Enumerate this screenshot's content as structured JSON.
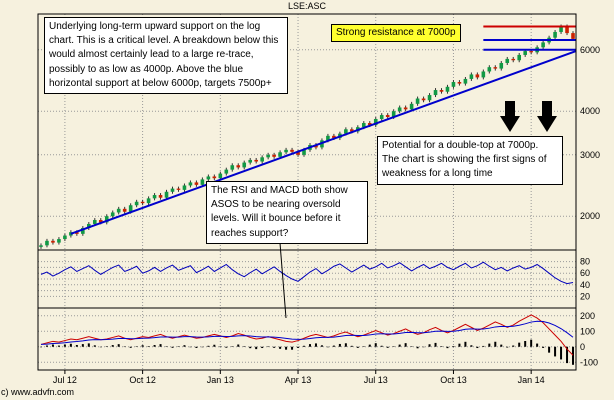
{
  "header": {
    "symbol": "LSE:ASC"
  },
  "footer": {
    "copyright": "c) www.advfn.com"
  },
  "annotations": {
    "support_note": "Underlying long-term upward support on the log chart. This is a critical level. A breakdown below this would almost certainly lead to a large re-trace, possibly to as low as 4000p. Above the blue horizontal support at below 6000p, targets 7500p+",
    "resistance_note": "Strong resistance at 7000p",
    "double_top_note": "Potential for a double-top at 7000p. The chart is showing the first signs of weakness for a long time",
    "rsi_note": "The RSI and MACD both show ASOS to be nearing oversold levels. Will it bounce before it reaches support?"
  },
  "colors": {
    "background": "#f6f1de",
    "grid": "#999999",
    "frame": "#000000",
    "candle_up": "#119944",
    "candle_down": "#cc2200",
    "wick": "#333333",
    "trend_line": "#0000cc",
    "resistance_line": "#cc0000",
    "rsi_line": "#0000bb",
    "macd_line": "#cc0000",
    "macd_signal": "#0000cc",
    "histogram": "#000000",
    "note_highlight": "#ffff2e"
  },
  "chart_data": [
    {
      "type": "candlestick",
      "title": "LSE:ASC weekly price (pence), log scale",
      "ylim": [
        1600,
        7600
      ],
      "log_scale": true,
      "grid": true,
      "yticks": [
        {
          "value": 6000,
          "label": "6000"
        },
        {
          "value": 4000,
          "label": "4000"
        },
        {
          "value": 3000,
          "label": "3000"
        },
        {
          "value": 2000,
          "label": "2000"
        }
      ],
      "x_ticks": [
        {
          "label": "Jul 12",
          "i": 4
        },
        {
          "label": "Oct 12",
          "i": 17
        },
        {
          "label": "Jan 13",
          "i": 30
        },
        {
          "label": "Apr 13",
          "i": 43
        },
        {
          "label": "Jul 13",
          "i": 56
        },
        {
          "label": "Oct 13",
          "i": 69
        },
        {
          "label": "Jan 14",
          "i": 82
        }
      ],
      "close": [
        1650,
        1700,
        1680,
        1720,
        1760,
        1800,
        1780,
        1850,
        1900,
        1950,
        1920,
        2000,
        2050,
        2100,
        2060,
        2150,
        2200,
        2180,
        2250,
        2300,
        2260,
        2350,
        2400,
        2380,
        2450,
        2500,
        2460,
        2550,
        2600,
        2570,
        2650,
        2720,
        2800,
        2760,
        2850,
        2900,
        2870,
        2950,
        3000,
        2960,
        3050,
        3100,
        3060,
        3000,
        3100,
        3200,
        3150,
        3300,
        3400,
        3350,
        3450,
        3550,
        3500,
        3600,
        3700,
        3650,
        3800,
        3900,
        3850,
        4000,
        4100,
        4050,
        4200,
        4350,
        4300,
        4450,
        4600,
        4550,
        4700,
        4850,
        4800,
        4950,
        5100,
        5000,
        5200,
        5350,
        5300,
        5500,
        5650,
        5600,
        5800,
        5950,
        5900,
        6100,
        6300,
        6500,
        6750,
        7000,
        6700,
        6450
      ],
      "overlays": [
        {
          "kind": "trend",
          "i_from": 5,
          "price_from": 1780,
          "i_to": 90,
          "price_to": 5950,
          "color_key": "trend_line"
        },
        {
          "kind": "hline",
          "price": 7000,
          "i_from": 74,
          "i_to": 95,
          "color_key": "resistance_line"
        },
        {
          "kind": "hline",
          "price": 6400,
          "i_from": 74,
          "i_to": 95,
          "color_key": "trend_line"
        },
        {
          "kind": "hline",
          "price": 6000,
          "i_from": 74,
          "i_to": 95,
          "color_key": "trend_line"
        }
      ]
    },
    {
      "type": "line",
      "title": "RSI",
      "ylim": [
        0,
        100
      ],
      "yticks": [
        80,
        60,
        40,
        20
      ],
      "gridlines": [
        20,
        30,
        40,
        50,
        60,
        70,
        80
      ],
      "values": [
        58,
        62,
        55,
        60,
        66,
        71,
        63,
        68,
        73,
        65,
        58,
        64,
        70,
        74,
        63,
        67,
        72,
        60,
        64,
        70,
        63,
        69,
        74,
        65,
        69,
        73,
        61,
        66,
        72,
        63,
        69,
        75,
        66,
        59,
        54,
        61,
        67,
        59,
        65,
        71,
        63,
        56,
        50,
        46,
        54,
        62,
        68,
        59,
        65,
        72,
        76,
        69,
        62,
        68,
        74,
        67,
        71,
        77,
        69,
        73,
        78,
        71,
        64,
        70,
        75,
        68,
        72,
        77,
        70,
        66,
        72,
        77,
        69,
        73,
        79,
        72,
        66,
        70,
        64,
        69,
        73,
        67,
        70,
        75,
        68,
        60,
        52,
        46,
        42,
        44
      ]
    },
    {
      "type": "macd",
      "title": "MACD",
      "ylim": [
        -150,
        250
      ],
      "yticks": [
        200,
        100,
        0,
        -100
      ],
      "gridlines": [
        -100,
        0,
        100,
        200
      ],
      "signal_period": 9,
      "macd": [
        15,
        25,
        35,
        30,
        40,
        50,
        45,
        55,
        65,
        55,
        45,
        50,
        60,
        70,
        55,
        45,
        55,
        65,
        60,
        70,
        80,
        65,
        55,
        65,
        75,
        65,
        55,
        60,
        70,
        80,
        70,
        60,
        70,
        85,
        75,
        60,
        50,
        55,
        65,
        55,
        45,
        35,
        30,
        40,
        55,
        70,
        80,
        70,
        60,
        70,
        85,
        95,
        80,
        65,
        75,
        90,
        105,
        90,
        75,
        85,
        100,
        115,
        95,
        80,
        90,
        110,
        125,
        105,
        90,
        105,
        125,
        145,
        125,
        105,
        120,
        140,
        160,
        145,
        125,
        140,
        165,
        185,
        205,
        185,
        155,
        115,
        75,
        35,
        -15,
        -55
      ]
    }
  ]
}
